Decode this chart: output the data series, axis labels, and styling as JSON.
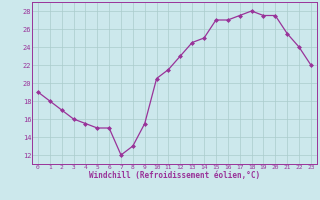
{
  "x": [
    0,
    1,
    2,
    3,
    4,
    5,
    6,
    7,
    8,
    9,
    10,
    11,
    12,
    13,
    14,
    15,
    16,
    17,
    18,
    19,
    20,
    21,
    22,
    23
  ],
  "y": [
    19,
    18,
    17,
    16,
    15.5,
    15,
    15,
    12,
    13,
    15.5,
    20.5,
    21.5,
    23,
    24.5,
    25,
    27,
    27,
    27.5,
    28,
    27.5,
    27.5,
    25.5,
    24,
    22
  ],
  "line_color": "#993399",
  "marker": "D",
  "marker_size": 2.0,
  "bg_color": "#cce8ec",
  "grid_color": "#aacccc",
  "xlabel": "Windchill (Refroidissement éolien,°C)",
  "xlabel_color": "#993399",
  "tick_color": "#993399",
  "ylim": [
    11,
    29
  ],
  "xlim": [
    -0.5,
    23.5
  ],
  "yticks": [
    12,
    14,
    16,
    18,
    20,
    22,
    24,
    26,
    28
  ],
  "xticks": [
    0,
    1,
    2,
    3,
    4,
    5,
    6,
    7,
    8,
    9,
    10,
    11,
    12,
    13,
    14,
    15,
    16,
    17,
    18,
    19,
    20,
    21,
    22,
    23
  ],
  "linewidth": 0.9,
  "spine_color": "#993399"
}
